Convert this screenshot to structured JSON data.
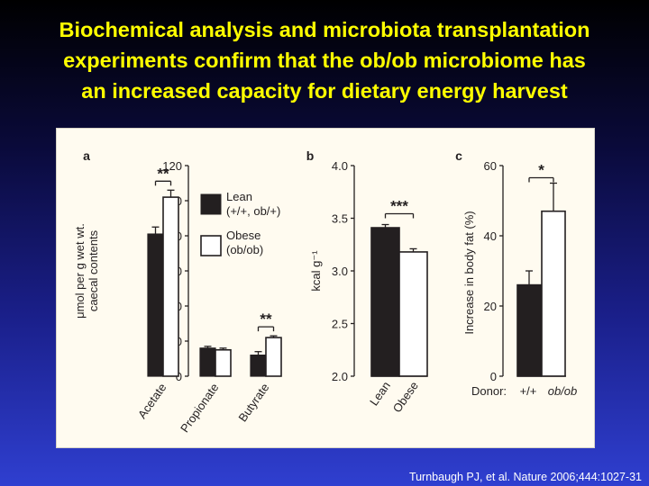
{
  "title_lines": [
    "Biochemical analysis and microbiota transplantation",
    "experiments confirm that the ob/ob microbiome has",
    "an increased capacity for dietary energy harvest"
  ],
  "citation": "Turnbaugh PJ, et al. Nature 2006;444:1027-31",
  "colors": {
    "title": "#ffff00",
    "lean_bar": "#231f20",
    "obese_bar": "#ffffff",
    "panel_bg": "#fffbf0"
  },
  "chart_data": [
    {
      "panel_label": "a",
      "type": "bar",
      "categories": [
        "Acetate",
        "Propionate",
        "Butyrate"
      ],
      "ylabel_lines": [
        "μmol per g wet wt.",
        "caecal contents"
      ],
      "ylim": [
        0,
        120
      ],
      "yticks": [
        0,
        20,
        40,
        60,
        80,
        100,
        120
      ],
      "series": [
        {
          "name": "Lean",
          "name_detail": "(+/+, ob/+)",
          "values": [
            81,
            16,
            12
          ],
          "errors": [
            4,
            1,
            2
          ]
        },
        {
          "name": "Obese",
          "name_detail": "(ob/ob)",
          "values": [
            102,
            15,
            22
          ],
          "errors": [
            4,
            1,
            1
          ]
        }
      ],
      "significance": [
        "**",
        "",
        "**"
      ],
      "legend_position": "right"
    },
    {
      "panel_label": "b",
      "type": "bar",
      "categories": [
        "Lean",
        "Obese"
      ],
      "ylabel": "kcal g⁻¹",
      "ylim": [
        2.0,
        4.0
      ],
      "yticks": [
        "2.0",
        "2.5",
        "3.0",
        "3.5",
        "4.0"
      ],
      "values": [
        3.41,
        3.18
      ],
      "errors": [
        0.03,
        0.03
      ],
      "significance": "***"
    },
    {
      "panel_label": "c",
      "type": "bar",
      "categories": [
        "+/+",
        "ob/ob"
      ],
      "category_prefix": "Donor:",
      "ylabel": "Increase in body fat (%)",
      "ylim": [
        0,
        60
      ],
      "yticks": [
        0,
        20,
        40,
        60
      ],
      "values": [
        26,
        47
      ],
      "errors": [
        4,
        8
      ],
      "significance": "*"
    }
  ]
}
